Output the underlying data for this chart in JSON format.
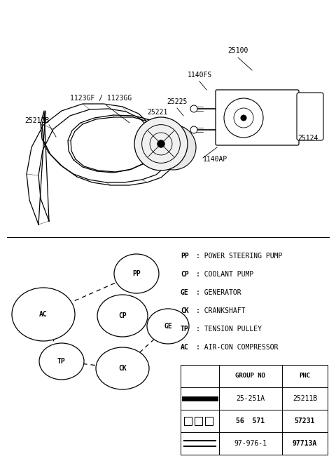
{
  "bg_color": "#ffffff",
  "legend_items": [
    {
      "abbr": "PP",
      "desc": "POWER STEERING PUMP"
    },
    {
      "abbr": "CP",
      "desc": "COOLANT PUMP"
    },
    {
      "abbr": "GE",
      "desc": "GENERATOR"
    },
    {
      "abbr": "CK",
      "desc": "CRANKSHAFT"
    },
    {
      "abbr": "TP",
      "desc": "TENSION PULLEY"
    },
    {
      "abbr": "AC",
      "desc": "AIR-CON COMPRESSOR"
    }
  ],
  "table_headers": [
    "",
    "GROUP NO",
    "PNC"
  ],
  "table_rows": [
    {
      "symbol": "solid_line",
      "group": "25-251A",
      "pnc": "25211B"
    },
    {
      "symbol": "dashed_line",
      "group": "56  571",
      "pnc": "57231"
    },
    {
      "symbol": "double_line",
      "group": "97-976-1",
      "pnc": "97713A"
    }
  ]
}
